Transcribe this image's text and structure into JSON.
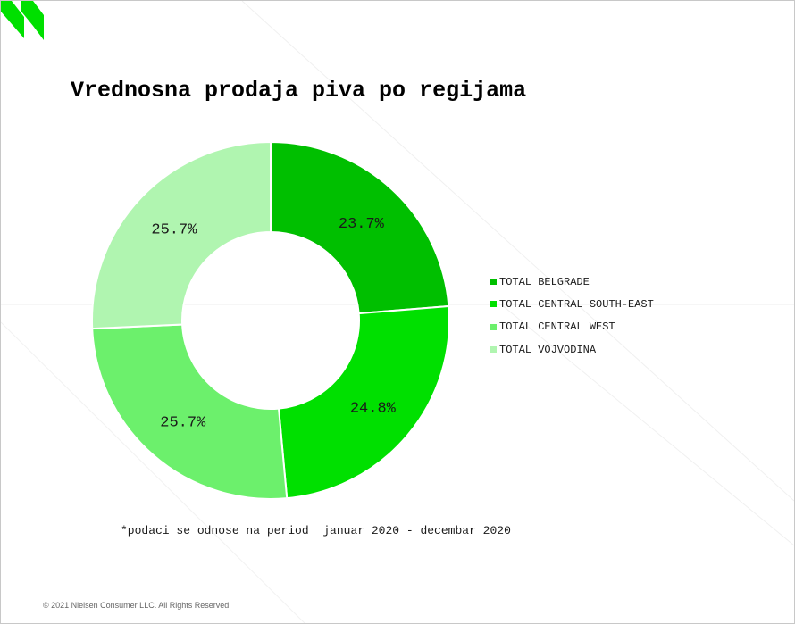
{
  "logo": {
    "icon": "nielsen-logo-icon",
    "color": "#00e000"
  },
  "title": "Vrednosna prodaja piva po regijama",
  "chart_data": {
    "type": "pie",
    "variant": "donut",
    "title": "Vrednosna prodaja piva po regijama",
    "categories": [
      "TOTAL BELGRADE",
      "TOTAL CENTRAL SOUTH-EAST",
      "TOTAL CENTRAL WEST",
      "TOTAL VOJVODINA"
    ],
    "values": [
      23.7,
      24.8,
      25.7,
      25.7
    ],
    "labels": [
      "23.7%",
      "24.8%",
      "25.7%",
      "25.7%"
    ],
    "colors": [
      "#00bf00",
      "#00e000",
      "#6cf06c",
      "#b0f5b0"
    ],
    "legend_position": "right"
  },
  "footnote": "*podaci se odnose na period  januar 2020 - decembar 2020",
  "copyright": "© 2021 Nielsen Consumer LLC. All Rights Reserved."
}
